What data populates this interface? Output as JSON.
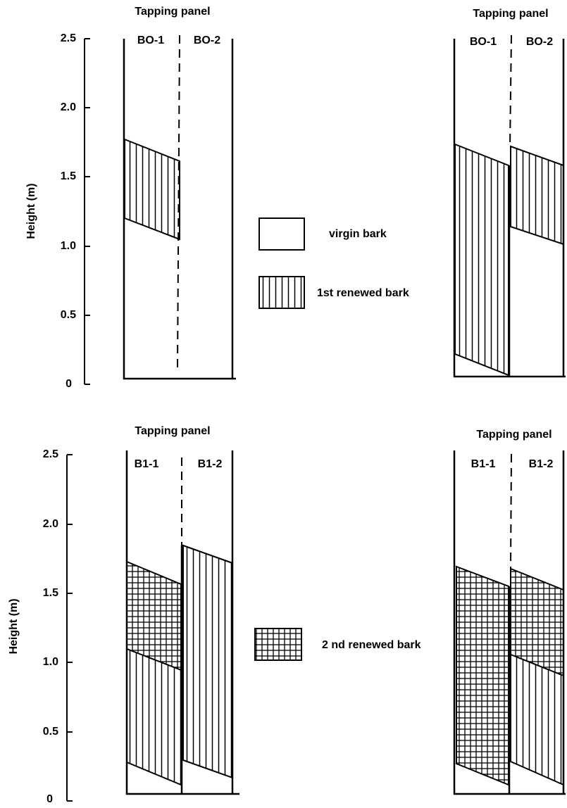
{
  "top": {
    "axis": {
      "label": "Height (m)",
      "ticks": [
        "2.5",
        "2.0",
        "1.5",
        "1.0",
        "0.5",
        "0"
      ]
    },
    "panels": [
      {
        "title": "Tapping panel",
        "sections": [
          "BO-1",
          "BO-2"
        ]
      },
      {
        "title": "Tapping panel",
        "sections": [
          "BO-1",
          "BO-2"
        ]
      }
    ]
  },
  "bottom": {
    "axis": {
      "label": "Height (m)",
      "ticks": [
        "2.5",
        "2.0",
        "1.5",
        "1.0",
        "0.5",
        "0"
      ]
    },
    "panels": [
      {
        "title": "Tapping panel",
        "sections": [
          "B1-1",
          "B1-2"
        ]
      },
      {
        "title": "Tapping panel",
        "sections": [
          "B1-1",
          "B1-2"
        ]
      }
    ]
  },
  "legend": [
    "virgin bark",
    "1st renewed bark",
    "2 nd renewed bark"
  ]
}
